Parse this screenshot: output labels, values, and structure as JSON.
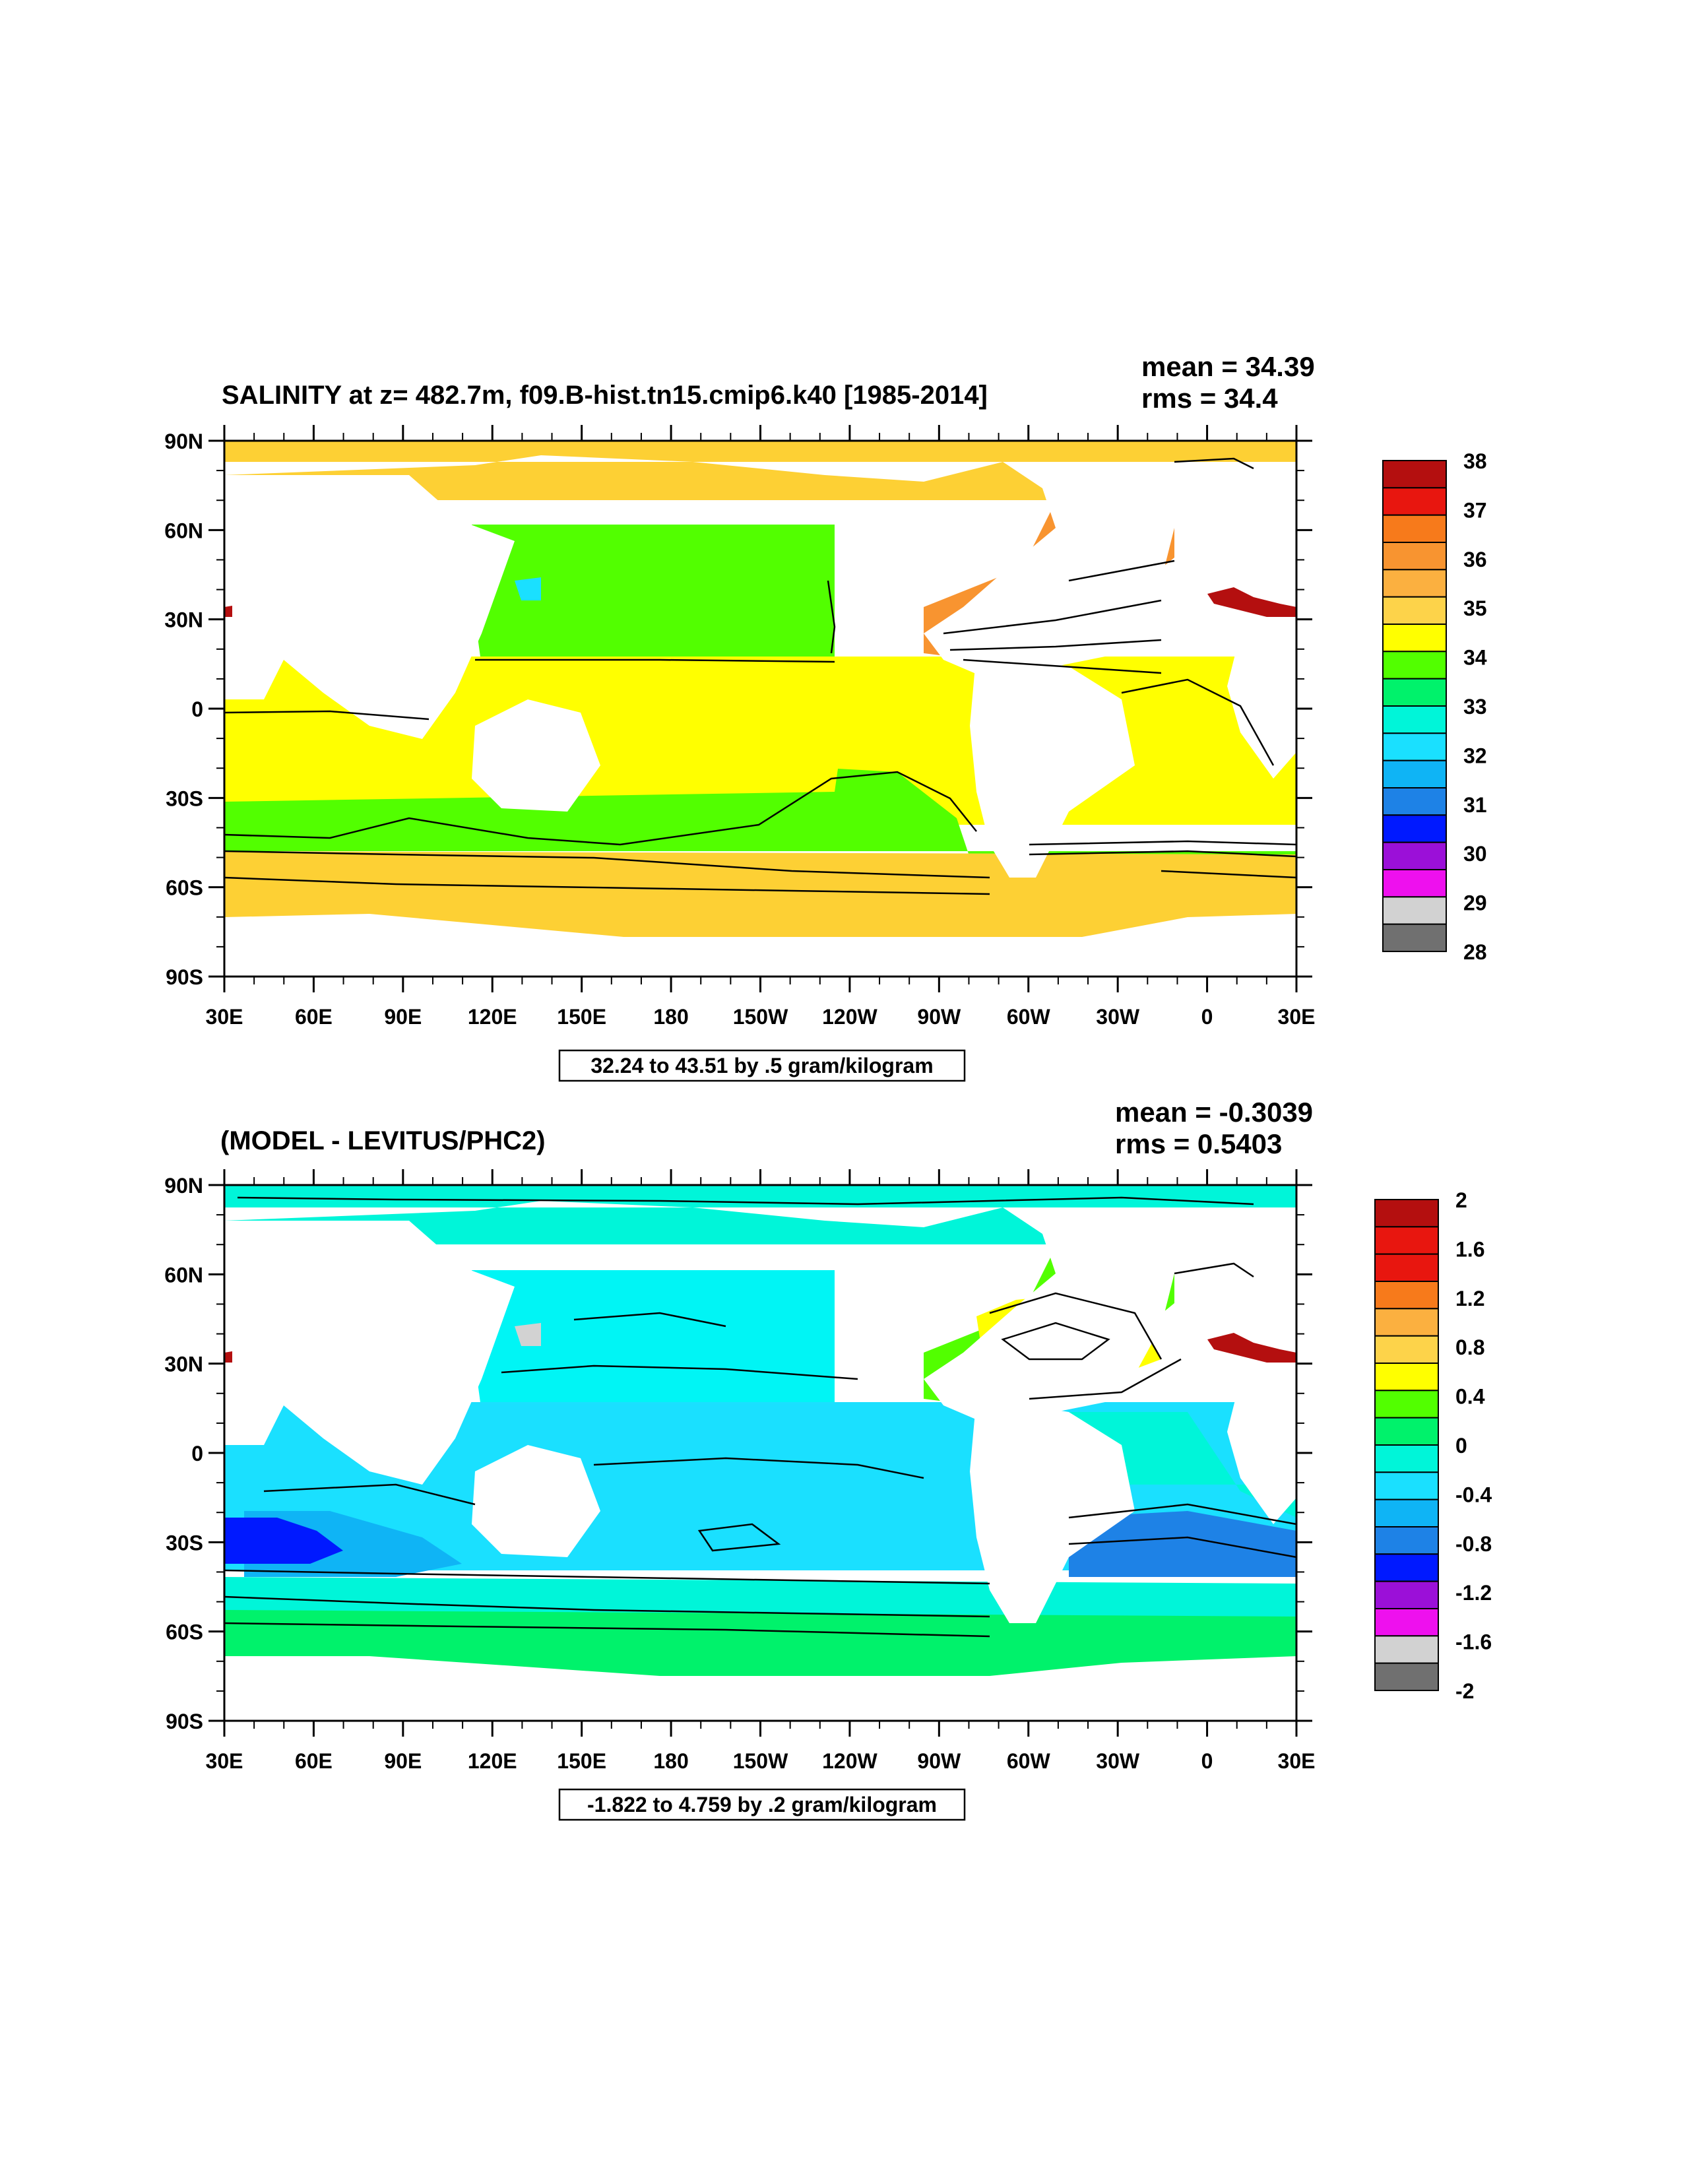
{
  "panels": [
    {
      "id": "top",
      "title": "SALINITY at z= 482.7m, f09.B-hist.tn15.cmip6.k40 [1985-2014]",
      "mean_label": "mean = 34.39",
      "rms_label": "rms = 34.4",
      "range_label": "32.24 to 43.51 by .5 gram/kilogram",
      "colorbar": {
        "labels": [
          "38",
          "37",
          "36",
          "35",
          "34",
          "33",
          "32",
          "31",
          "30",
          "29",
          "28"
        ],
        "colors": [
          "#b40f0f",
          "#e8160f",
          "#f77a1b",
          "#f89430",
          "#fbb040",
          "#fdd34a",
          "#ffff00",
          "#52ff00",
          "#00f26b",
          "#00f5d9",
          "#1ae0ff",
          "#0fb4f5",
          "#1e82e6",
          "#0019ff",
          "#9b10d8",
          "#ee10ee",
          "#d2d2d2",
          "#707070"
        ]
      },
      "ocean_fill": {
        "north": "#fdd034",
        "north_pacific": "#52ff00",
        "tropics": "#ffff00",
        "southern_band": "#52ff00",
        "south": "#fdd034",
        "north_atlantic": "#f89430"
      }
    },
    {
      "id": "bottom",
      "title": "(MODEL - LEVITUS/PHC2)",
      "mean_label": "mean = -0.3039",
      "rms_label": "rms = 0.5403",
      "range_label": "-1.822 to 4.759 by .2 gram/kilogram",
      "colorbar": {
        "labels": [
          "2",
          "1.6",
          "1.2",
          "0.8",
          "0.4",
          "0",
          "-0.4",
          "-0.8",
          "-1.2",
          "-1.6",
          "-2"
        ],
        "colors": [
          "#b40f0f",
          "#e8160f",
          "#e8160f",
          "#f77a1b",
          "#fbb040",
          "#fdd34a",
          "#ffff00",
          "#52ff00",
          "#00f26b",
          "#00f5d9",
          "#1ae0ff",
          "#0fb4f5",
          "#1e82e6",
          "#0019ff",
          "#9b10d8",
          "#ee10ee",
          "#d2d2d2",
          "#707070"
        ]
      },
      "ocean_fill": {
        "north": "#00f5d9",
        "north_pacific": "#00f5f5",
        "tropics": "#1ae0ff",
        "southern_band": "#00f5d9",
        "south": "#00f26b",
        "north_atlantic": "#52ff00"
      }
    }
  ],
  "axes": {
    "lat_labels": [
      "90N",
      "60N",
      "30N",
      "0",
      "30S",
      "60S",
      "90S"
    ],
    "lon_labels": [
      "30E",
      "60E",
      "90E",
      "120E",
      "150E",
      "180",
      "150W",
      "120W",
      "90W",
      "60W",
      "30W",
      "0",
      "30E"
    ]
  }
}
